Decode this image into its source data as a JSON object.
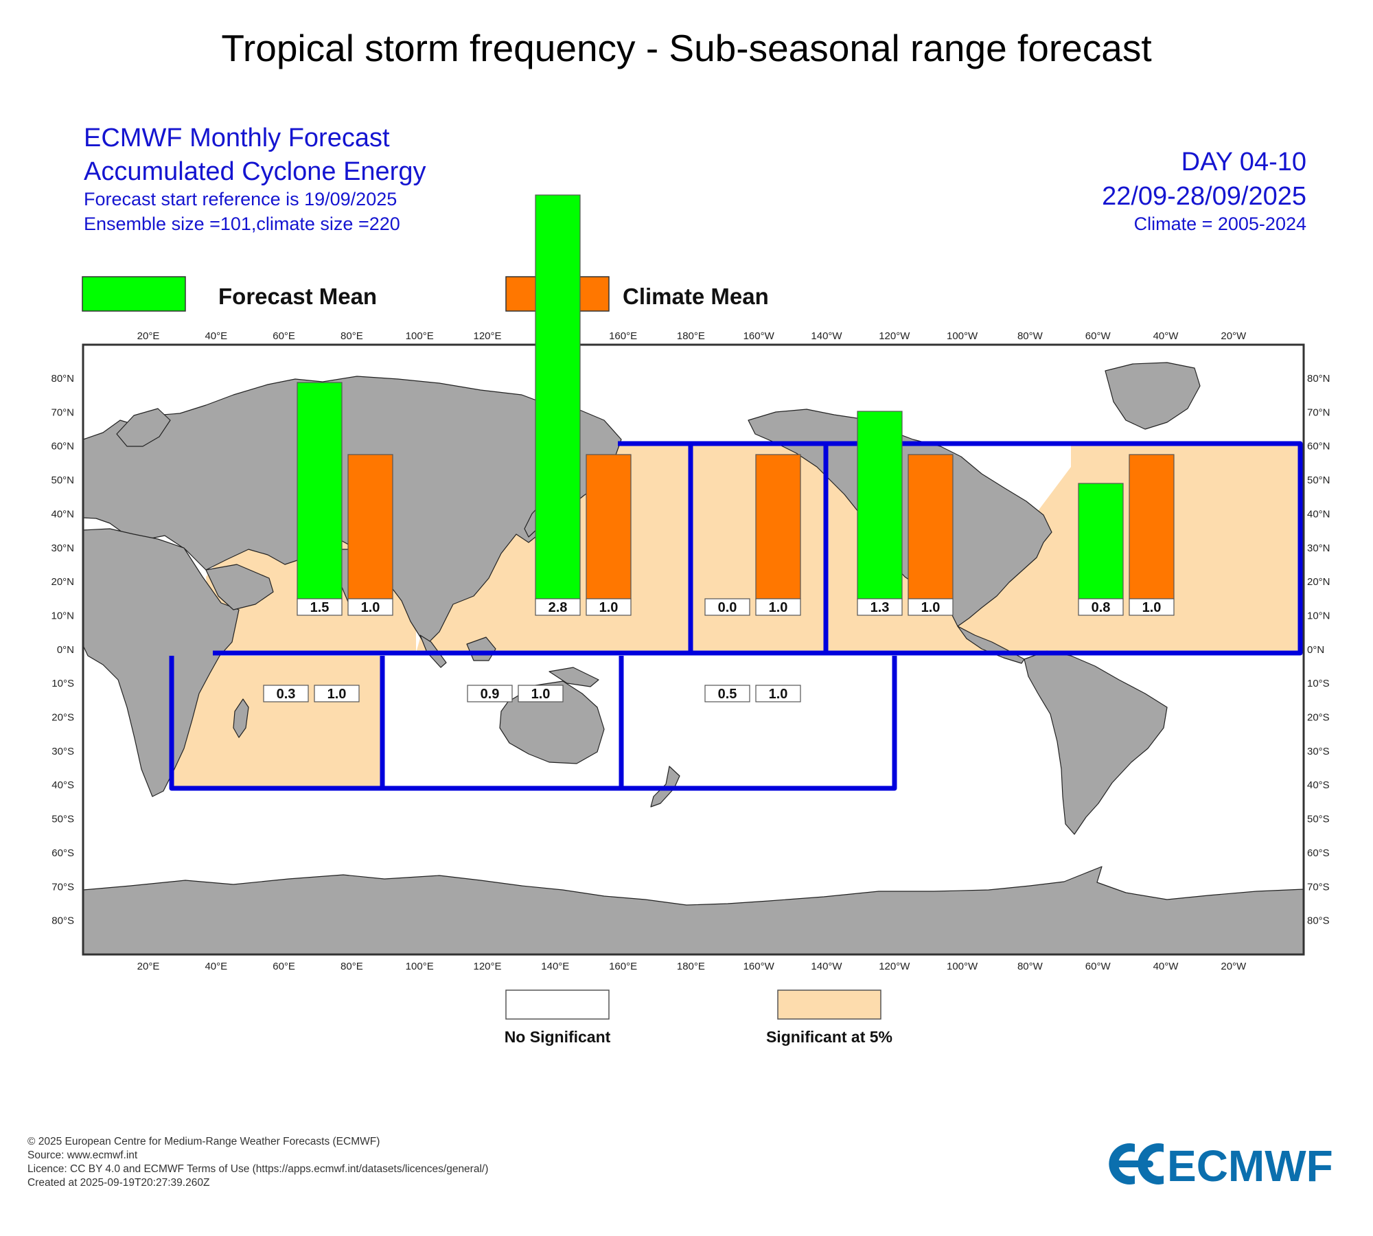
{
  "page": {
    "title": "Tropical storm frequency - Sub-seasonal range forecast"
  },
  "header": {
    "product_line1": "ECMWF Monthly Forecast",
    "product_line2": "Accumulated Cyclone Energy",
    "start_reference": "Forecast start reference is 19/09/2025",
    "ensemble": "Ensemble size =101,climate size =220",
    "day_range": "DAY 04-10",
    "date_range": "22/09-28/09/2025",
    "climate": "Climate = 2005-2024"
  },
  "legend": {
    "forecast_label": "Forecast Mean",
    "climate_label": "Climate Mean",
    "no_sig_label": "No Significant",
    "sig_label": "Significant at 5%",
    "colors": {
      "forecast": "#00ff00",
      "climate": "#ff7700",
      "significant": "#fddcad",
      "basin_border": "#0000dd",
      "land": "#a6a6a6"
    }
  },
  "axes": {
    "lon_labels": [
      "20°E",
      "40°E",
      "60°E",
      "80°E",
      "100°E",
      "120°E",
      "140°E",
      "160°E",
      "180°E",
      "160°W",
      "140°W",
      "120°W",
      "100°W",
      "80°W",
      "60°W",
      "40°W",
      "20°W"
    ],
    "lat_labels": [
      "80°N",
      "70°N",
      "60°N",
      "50°N",
      "40°N",
      "30°N",
      "20°N",
      "10°N",
      "0°N",
      "10°S",
      "20°S",
      "30°S",
      "40°S",
      "50°S",
      "60°S",
      "70°S",
      "80°S"
    ]
  },
  "chart_data": {
    "type": "bar",
    "title": "ECMWF Monthly Forecast Accumulated Cyclone Energy",
    "series_names": [
      "Forecast Mean",
      "Climate Mean"
    ],
    "basins": [
      {
        "id": "north-indian",
        "forecast": 1.5,
        "climate": 1.0,
        "forecast_label": "1.5",
        "climate_label": "1.0",
        "significant": true
      },
      {
        "id": "western-north-pacific",
        "forecast": 2.8,
        "climate": 1.0,
        "forecast_label": "2.8",
        "climate_label": "1.0",
        "significant": true
      },
      {
        "id": "central-north-pacific",
        "forecast": 0.0,
        "climate": 1.0,
        "forecast_label": "0.0",
        "climate_label": "1.0",
        "significant": true
      },
      {
        "id": "eastern-north-pacific",
        "forecast": 1.3,
        "climate": 1.0,
        "forecast_label": "1.3",
        "climate_label": "1.0",
        "significant": true
      },
      {
        "id": "north-atlantic",
        "forecast": 0.8,
        "climate": 1.0,
        "forecast_label": "0.8",
        "climate_label": "1.0",
        "significant": true
      },
      {
        "id": "south-west-indian",
        "forecast": 0.3,
        "climate": 1.0,
        "forecast_label": "0.3",
        "climate_label": "1.0",
        "significant": true
      },
      {
        "id": "australian",
        "forecast": 0.9,
        "climate": 1.0,
        "forecast_label": "0.9",
        "climate_label": "1.0",
        "significant": false
      },
      {
        "id": "south-pacific",
        "forecast": 0.5,
        "climate": 1.0,
        "forecast_label": "0.5",
        "climate_label": "1.0",
        "significant": false
      }
    ]
  },
  "footer": {
    "copyright": "© 2025 European Centre for Medium-Range Weather Forecasts (ECMWF)",
    "source": "Source: www.ecmwf.int",
    "licence": "Licence: CC BY 4.0 and ECMWF Terms of Use (https://apps.ecmwf.int/datasets/licences/general/)",
    "created": "Created at 2025-09-19T20:27:39.260Z",
    "logo_text": "ECMWF"
  }
}
